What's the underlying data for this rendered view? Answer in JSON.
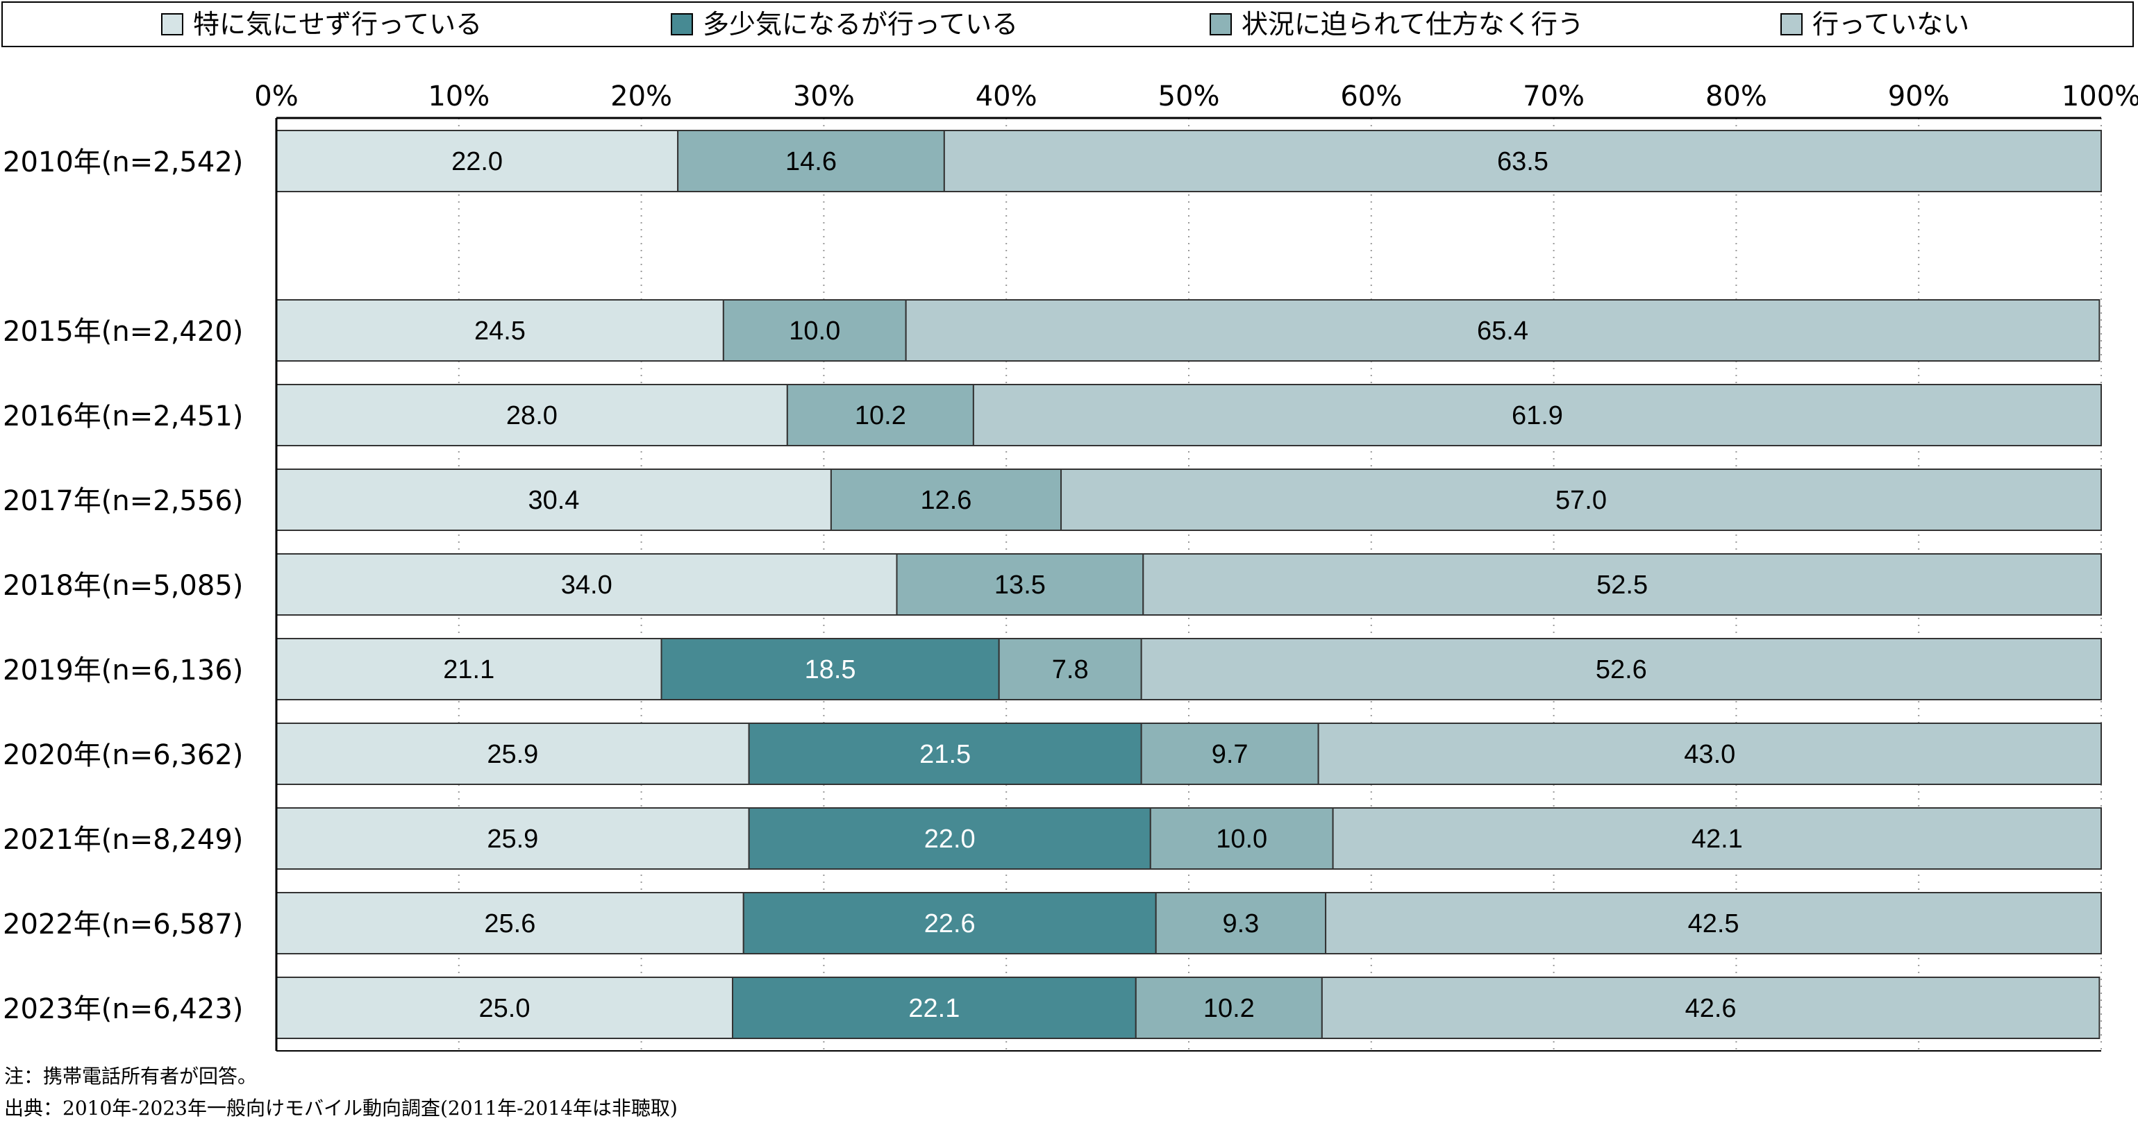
{
  "chart_data": {
    "type": "bar",
    "orientation": "horizontal",
    "stacked": true,
    "percent": true,
    "xlim": [
      0,
      100
    ],
    "x_ticks": [
      "0%",
      "10%",
      "20%",
      "30%",
      "40%",
      "50%",
      "60%",
      "70%",
      "80%",
      "90%",
      "100%"
    ],
    "grid": "dotted vertical",
    "legend_position": "top",
    "categories": [
      "2010年(n=2,542)",
      "2015年(n=2,420)",
      "2016年(n=2,451)",
      "2017年(n=2,556)",
      "2018年(n=5,085)",
      "2019年(n=6,136)",
      "2020年(n=6,362)",
      "2021年(n=8,249)",
      "2022年(n=6,587)",
      "2023年(n=6,423)"
    ],
    "series": [
      {
        "name": "特に気にせず行っている",
        "color": "#d6e4e6",
        "label_color": "#000000",
        "values": [
          22.0,
          24.5,
          28.0,
          30.4,
          34.0,
          21.1,
          25.9,
          25.9,
          25.6,
          25.0
        ],
        "labels": [
          "22.0",
          "24.5",
          "28.0",
          "30.4",
          "34.0",
          "21.1",
          "25.9",
          "25.9",
          "25.6",
          "25.0"
        ]
      },
      {
        "name": "多少気になるが行っている",
        "color": "#478a93",
        "label_color": "#ffffff",
        "values": [
          null,
          null,
          null,
          null,
          null,
          18.5,
          21.5,
          22.0,
          22.6,
          22.1
        ],
        "labels": [
          "",
          "",
          "",
          "",
          "",
          "18.5",
          "21.5",
          "22.0",
          "22.6",
          "22.1"
        ]
      },
      {
        "name": "状況に迫られて仕方なく行う",
        "color": "#8db3b7",
        "label_color": "#000000",
        "values": [
          14.6,
          10.0,
          10.2,
          12.6,
          13.5,
          7.8,
          9.7,
          10.0,
          9.3,
          10.2
        ],
        "labels": [
          "14.6",
          "10.0",
          "10.2",
          "12.6",
          "13.5",
          "7.8",
          "9.7",
          "10.0",
          "9.3",
          "10.2"
        ]
      },
      {
        "name": "行っていない",
        "color": "#b4cbcf",
        "label_color": "#000000",
        "values": [
          63.5,
          65.4,
          61.9,
          57.0,
          52.5,
          52.6,
          43.0,
          42.1,
          42.5,
          42.6
        ],
        "labels": [
          "63.5",
          "65.4",
          "61.9",
          "57.0",
          "52.5",
          "52.6",
          "43.0",
          "42.1",
          "42.5",
          "42.6"
        ]
      }
    ]
  },
  "notes": {
    "note": "注：携帯電話所有者が回答。",
    "source": "出典：2010年-2023年一般向けモバイル動向調査(2011年-2014年は非聴取)"
  }
}
